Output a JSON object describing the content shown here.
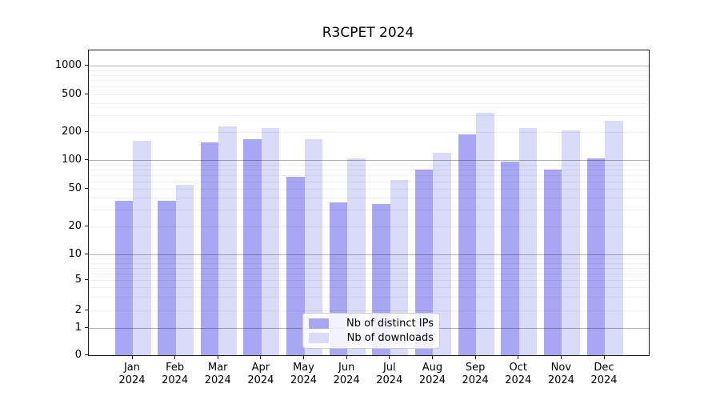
{
  "title": "R3CPET 2024",
  "chart_data": {
    "type": "bar",
    "title": "R3CPET 2024",
    "categories": [
      "Jan",
      "Feb",
      "Mar",
      "Apr",
      "May",
      "Jun",
      "Jul",
      "Aug",
      "Sep",
      "Oct",
      "Nov",
      "Dec"
    ],
    "year_label": "2024",
    "series": [
      {
        "name": "Nb of distinct IPs",
        "color": "#a7a7f3",
        "values": [
          38,
          38,
          157,
          168,
          68,
          36,
          35,
          80,
          190,
          97,
          80,
          105
        ]
      },
      {
        "name": "Nb of downloads",
        "color": "#dadaf9",
        "values": [
          162,
          56,
          230,
          220,
          170,
          105,
          62,
          120,
          320,
          220,
          208,
          265
        ]
      }
    ],
    "xlabel": "",
    "ylabel": "",
    "yscale": "symlog",
    "y_ticks": [
      0,
      1,
      2,
      5,
      10,
      20,
      50,
      100,
      200,
      500,
      1000
    ],
    "ylim": [
      0,
      1470
    ],
    "grid": {
      "axis": "y",
      "major_color": "#b0b0b0",
      "minor_color": "#ededed"
    },
    "legend_position": "lower center"
  }
}
